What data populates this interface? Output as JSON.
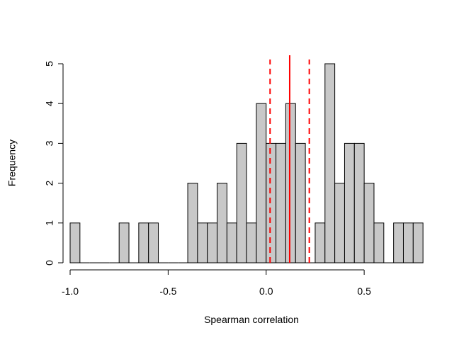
{
  "chart_data": {
    "type": "bar",
    "subtype": "histogram",
    "title": "",
    "xlabel": "Spearman correlation",
    "ylabel": "Frequency",
    "bin_width": 0.05,
    "bin_start": -1.0,
    "counts": [
      1,
      0,
      0,
      0,
      0,
      1,
      0,
      1,
      1,
      0,
      0,
      0,
      2,
      1,
      1,
      2,
      1,
      3,
      1,
      4,
      3,
      3,
      4,
      3,
      0,
      1,
      5,
      2,
      3,
      3,
      2,
      1,
      0,
      1,
      1,
      1
    ],
    "xlim": [
      -1.0,
      0.85
    ],
    "ylim": [
      0,
      5
    ],
    "x_ticks": [
      -1.0,
      -0.5,
      0.0,
      0.5
    ],
    "x_tick_labels": [
      "-1.0",
      "-0.5",
      "0.0",
      "0.5"
    ],
    "y_ticks": [
      0,
      1,
      2,
      3,
      4,
      5
    ],
    "y_tick_labels": [
      "0",
      "1",
      "2",
      "3",
      "4",
      "5"
    ],
    "bar_fill": "#c8c8c8",
    "bar_stroke": "#000000",
    "reference_lines": [
      {
        "value": 0.12,
        "style": "solid",
        "color": "#ff0000"
      },
      {
        "value": 0.02,
        "style": "dashed",
        "color": "#ff0000"
      },
      {
        "value": 0.22,
        "style": "dashed",
        "color": "#ff0000"
      }
    ],
    "grid": false,
    "legend": "none"
  }
}
